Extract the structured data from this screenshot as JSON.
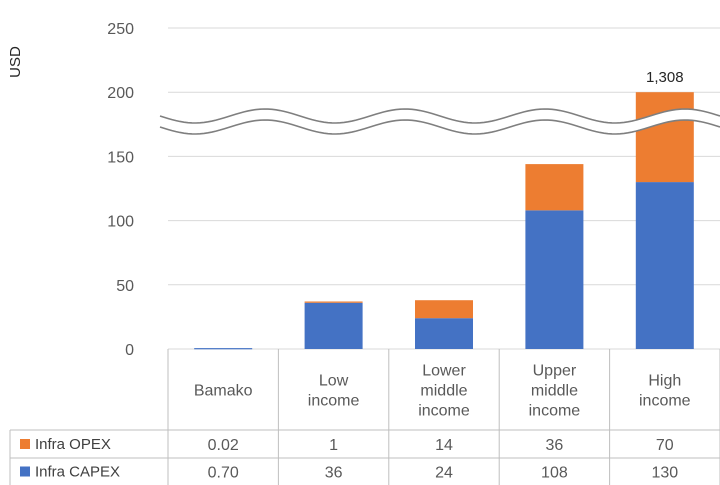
{
  "chart_data": {
    "type": "bar",
    "stacked": true,
    "ylabel": "USD",
    "ylim": [
      0,
      250
    ],
    "yticks": [
      0,
      50,
      100,
      150,
      200,
      250
    ],
    "grid": true,
    "axis_break": {
      "between": [
        150,
        200
      ]
    },
    "categories": [
      [
        "Bamako"
      ],
      [
        "Low",
        "income"
      ],
      [
        "Lower",
        "middle",
        "income"
      ],
      [
        "Upper",
        "middle",
        "income"
      ],
      [
        "High",
        "income"
      ]
    ],
    "series": [
      {
        "name": "Infra OPEX",
        "color": "#ED7D31",
        "values": [
          0.02,
          1,
          14,
          36,
          70
        ],
        "labels": [
          "0.02",
          "1",
          "14",
          "36",
          "70"
        ]
      },
      {
        "name": "Infra CAPEX",
        "color": "#4472C4",
        "values": [
          0.7,
          36,
          24,
          108,
          130
        ],
        "labels": [
          "0.70",
          "36",
          "24",
          "108",
          "130"
        ]
      }
    ],
    "drawn_totals": [
      0.72,
      37,
      38,
      144,
      200
    ],
    "annotations": [
      {
        "category_index": 4,
        "text": "1,308"
      }
    ],
    "data_table": true
  }
}
